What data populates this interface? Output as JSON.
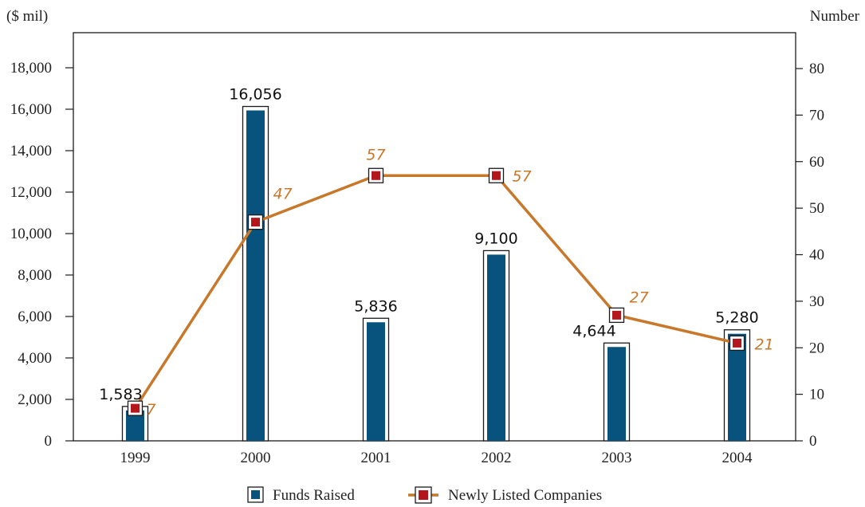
{
  "chart_data": {
    "type": "bar",
    "categories": [
      "1999",
      "2000",
      "2001",
      "2002",
      "2003",
      "2004"
    ],
    "series": [
      {
        "name": "Funds Raised",
        "type": "bar",
        "axis": "left",
        "values": [
          1583,
          16056,
          5836,
          9100,
          4644,
          5280
        ],
        "labels": [
          "1,583",
          "16,056",
          "5,836",
          "9,100",
          "4,644",
          "5,280"
        ],
        "color": "#08537e"
      },
      {
        "name": "Newly Listed Companies",
        "type": "line",
        "axis": "right",
        "values": [
          7,
          47,
          57,
          57,
          27,
          21
        ],
        "labels": [
          "7",
          "47",
          "57",
          "57",
          "27",
          "21"
        ],
        "color": "#c8782a",
        "marker_color": "#b3161b"
      }
    ],
    "left_axis": {
      "label": "($ mil)",
      "ylim": [
        0,
        18000
      ],
      "ticks": [
        0,
        2000,
        4000,
        6000,
        8000,
        10000,
        12000,
        14000,
        16000,
        18000
      ],
      "tick_labels": [
        "0",
        "2,000",
        "4,000",
        "6,000",
        "8,000",
        "10,000",
        "12,000",
        "14,000",
        "16,000",
        "18,000"
      ]
    },
    "right_axis": {
      "label": "Number",
      "ylim": [
        0,
        80
      ],
      "ticks": [
        0,
        10,
        20,
        30,
        40,
        50,
        60,
        70,
        80
      ],
      "tick_labels": [
        "0",
        "10",
        "20",
        "30",
        "40",
        "50",
        "60",
        "70",
        "80"
      ]
    },
    "grid": false,
    "legend_position": "bottom-center"
  }
}
